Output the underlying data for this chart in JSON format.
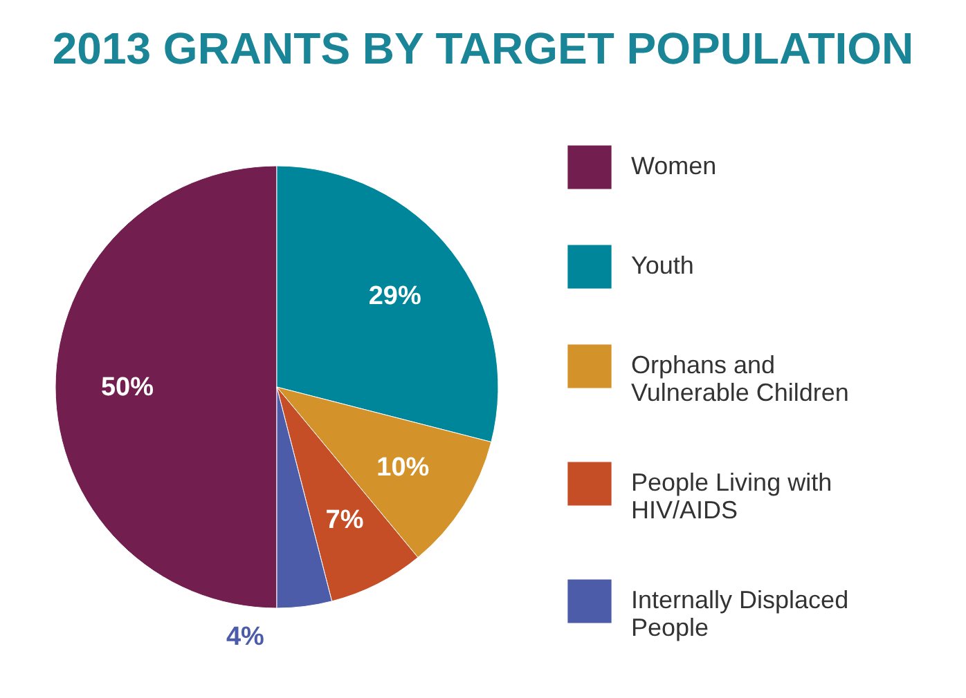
{
  "chart_data": {
    "type": "pie",
    "title": "2013 GRANTS BY TARGET POPULATION",
    "categories": [
      "Women",
      "Youth",
      "Orphans and Vulnerable Children",
      "People Living with HIV/AIDS",
      "Internally Displaced People"
    ],
    "values": [
      50,
      29,
      10,
      7,
      4
    ],
    "colors": [
      "#721f50",
      "#00869b",
      "#d4922a",
      "#c64e27",
      "#4d5ca9"
    ],
    "value_labels": [
      "50%",
      "29%",
      "10%",
      "7%",
      "4%"
    ],
    "legend": "right"
  }
}
